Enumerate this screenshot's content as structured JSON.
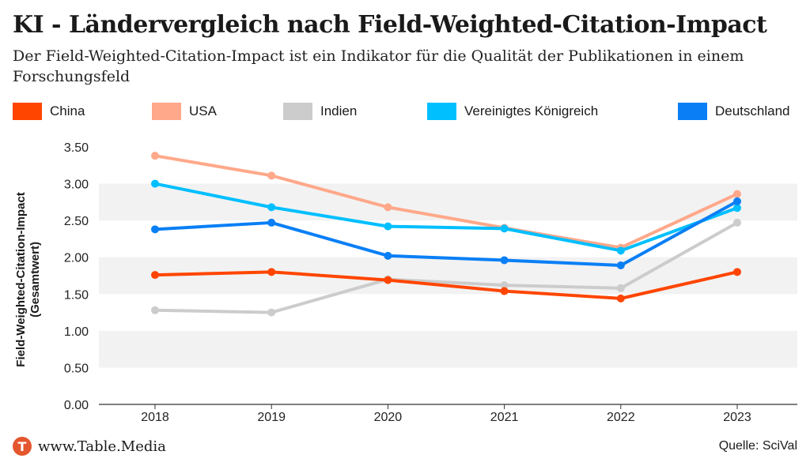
{
  "header": {
    "title": "KI - Ländervergleich nach Field-Weighted-Citation-Impact",
    "subtitle": "Der Field-Weighted-Citation-Impact ist ein Indikator für die Qualität der Publikationen in einem Forschungsfeld"
  },
  "footer": {
    "logo_letter": "T",
    "site": "www.Table.Media",
    "source": "Quelle: SciVal"
  },
  "colors": {
    "China": "#ff4500",
    "USA": "#ffa88a",
    "Indien": "#cccccc",
    "Vereinigtes Königreich": "#00bfff",
    "Deutschland": "#0a7ff5"
  },
  "chart_data": {
    "type": "line",
    "ylabel": "Field-Weighted-Citation-Impact\n(Gesamtwert)",
    "xlabel": "",
    "x": [
      "2018",
      "2019",
      "2020",
      "2021",
      "2022",
      "2023"
    ],
    "ylim": [
      0,
      3.5
    ],
    "yticks": [
      "0.00",
      "0.50",
      "1.00",
      "1.50",
      "2.00",
      "2.50",
      "3.00",
      "3.50"
    ],
    "grid": "alternating horizontal bands",
    "legend_position": "top",
    "series": [
      {
        "name": "China",
        "values": [
          1.76,
          1.8,
          1.69,
          1.54,
          1.44,
          1.8
        ]
      },
      {
        "name": "USA",
        "values": [
          3.38,
          3.11,
          2.68,
          2.4,
          2.13,
          2.86
        ]
      },
      {
        "name": "Indien",
        "values": [
          1.28,
          1.25,
          1.7,
          1.62,
          1.58,
          2.47
        ]
      },
      {
        "name": "Vereinigtes Königreich",
        "values": [
          3.0,
          2.68,
          2.42,
          2.39,
          2.09,
          2.67
        ]
      },
      {
        "name": "Deutschland",
        "values": [
          2.38,
          2.47,
          2.02,
          1.96,
          1.89,
          2.76
        ]
      }
    ],
    "draw_order": [
      "Indien",
      "USA",
      "Vereinigtes Königreich",
      "Deutschland",
      "China"
    ]
  }
}
